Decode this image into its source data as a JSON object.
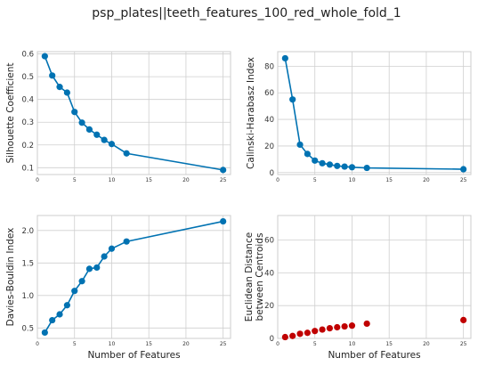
{
  "figure": {
    "title": "psp_plates||teeth_features_100_red_whole_fold_1"
  },
  "chart_data": [
    {
      "type": "line",
      "id": "silhouette",
      "xlabel": "",
      "ylabel": "Silhouette Coefficient",
      "x": [
        1,
        2,
        3,
        4,
        5,
        6,
        7,
        8,
        9,
        10,
        12,
        25
      ],
      "values": [
        0.59,
        0.505,
        0.455,
        0.43,
        0.345,
        0.298,
        0.268,
        0.245,
        0.222,
        0.204,
        0.163,
        0.09
      ],
      "xlim": [
        0,
        26
      ],
      "ylim": [
        0.07,
        0.61
      ],
      "xticks": [
        0,
        5,
        10,
        15,
        20,
        25
      ],
      "yticks": [
        0.1,
        0.2,
        0.3,
        0.4,
        0.5,
        0.6
      ],
      "ytick_labels": [
        "0.1",
        "0.2",
        "0.3",
        "0.4",
        "0.5",
        "0.6"
      ],
      "color": "#0072b2",
      "marker": "circle",
      "line": true
    },
    {
      "type": "line",
      "id": "calinski",
      "xlabel": "",
      "ylabel": "Calinski-Harabasz Index",
      "x": [
        1,
        2,
        3,
        4,
        5,
        6,
        7,
        8,
        9,
        10,
        12,
        25
      ],
      "values": [
        86,
        55,
        21,
        14,
        9,
        7,
        6,
        5,
        4.5,
        4,
        3.5,
        2.5
      ],
      "xlim": [
        0,
        26
      ],
      "ylim": [
        -1.5,
        91
      ],
      "xticks": [
        0,
        5,
        10,
        15,
        20,
        25
      ],
      "yticks": [
        0,
        20,
        40,
        60,
        80
      ],
      "ytick_labels": [
        "0",
        "20",
        "40",
        "60",
        "80"
      ],
      "color": "#0072b2",
      "marker": "circle",
      "line": true
    },
    {
      "type": "line",
      "id": "davies",
      "xlabel": "Number of Features",
      "ylabel": "Davies-Bouldin Index",
      "x": [
        1,
        2,
        3,
        4,
        5,
        6,
        7,
        8,
        9,
        10,
        12,
        25
      ],
      "values": [
        0.43,
        0.62,
        0.71,
        0.85,
        1.07,
        1.22,
        1.41,
        1.43,
        1.6,
        1.72,
        1.83,
        2.14
      ],
      "xlim": [
        0,
        26
      ],
      "ylim": [
        0.34,
        2.23
      ],
      "xticks": [
        0,
        5,
        10,
        15,
        20,
        25
      ],
      "yticks": [
        0.5,
        1.0,
        1.5,
        2.0
      ],
      "ytick_labels": [
        "0.5",
        "1.0",
        "1.5",
        "2.0"
      ],
      "color": "#0072b2",
      "marker": "circle",
      "line": true
    },
    {
      "type": "scatter",
      "id": "euclidean",
      "xlabel": "Number of Features",
      "ylabel": "Euclidean Distance between Centroids",
      "ylabel_lines": [
        "Euclidean Distance",
        "between Centroids"
      ],
      "x": [
        1,
        2,
        3,
        4,
        5,
        6,
        7,
        8,
        9,
        10,
        12,
        25
      ],
      "values": [
        0.8,
        1.5,
        2.8,
        3.4,
        4.5,
        5.4,
        6.2,
        6.8,
        7.3,
        7.8,
        9.0,
        11.2
      ],
      "xlim": [
        0,
        26
      ],
      "ylim": [
        0,
        75
      ],
      "xticks": [
        0,
        5,
        10,
        15,
        20,
        25
      ],
      "yticks": [
        0,
        20,
        40,
        60
      ],
      "ytick_labels": [
        "0",
        "20",
        "40",
        "60"
      ],
      "color": "#c00000",
      "marker": "circle",
      "line": false
    }
  ]
}
